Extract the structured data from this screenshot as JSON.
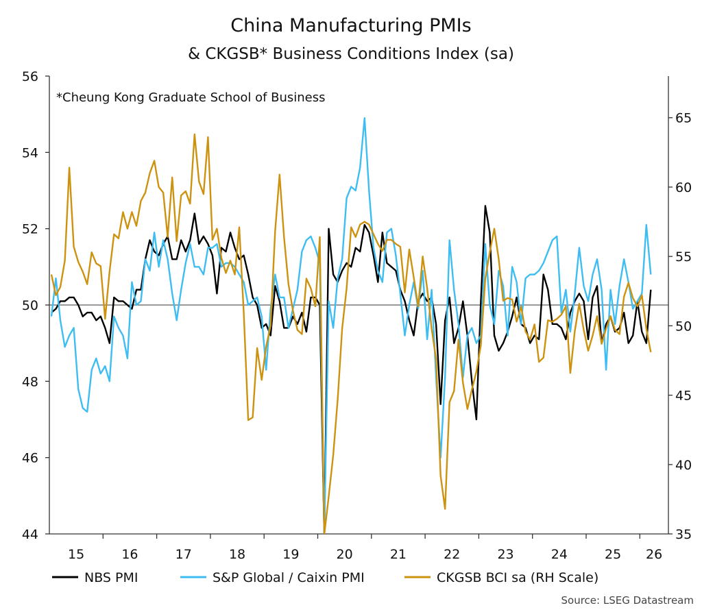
{
  "chart_data": {
    "type": "line",
    "title": "China Manufacturing PMIs",
    "subtitle": "& CKGSB* Business Conditions Index (sa)",
    "annotation": "*Cheung Kong Graduate School of Business",
    "source": "Source: LSEG Datastream",
    "x_start": "2015-01",
    "x_end": "2026-03",
    "x_frequency": "monthly",
    "x_tick_labels": [
      "15",
      "16",
      "17",
      "18",
      "19",
      "20",
      "21",
      "22",
      "23",
      "24",
      "25",
      "26"
    ],
    "y_left": {
      "ylim": [
        44,
        56
      ],
      "ticks": [
        44,
        46,
        48,
        50,
        52,
        54,
        56
      ],
      "reference_line": 50
    },
    "y_right": {
      "ylim": [
        35,
        68
      ],
      "ticks": [
        35,
        40,
        45,
        50,
        55,
        60,
        65
      ]
    },
    "grid": false,
    "legend_placement": "bottom",
    "series": [
      {
        "name": "NBS PMI",
        "axis": "left",
        "color": "#000000",
        "values": [
          49.8,
          49.9,
          50.1,
          50.1,
          50.2,
          50.2,
          50.0,
          49.7,
          49.8,
          49.8,
          49.6,
          49.7,
          49.4,
          49.0,
          50.2,
          50.1,
          50.1,
          50.0,
          49.9,
          50.4,
          50.4,
          51.2,
          51.7,
          51.4,
          51.3,
          51.6,
          51.8,
          51.2,
          51.2,
          51.7,
          51.4,
          51.7,
          52.4,
          51.6,
          51.8,
          51.6,
          51.3,
          50.3,
          51.5,
          51.4,
          51.9,
          51.5,
          51.2,
          51.3,
          50.8,
          50.2,
          50.0,
          49.4,
          49.5,
          49.2,
          50.5,
          50.1,
          49.4,
          49.4,
          49.7,
          49.5,
          49.8,
          49.3,
          50.2,
          50.2,
          50.0,
          35.7,
          52.0,
          50.8,
          50.6,
          50.9,
          51.1,
          51.0,
          51.5,
          51.4,
          52.1,
          51.9,
          51.3,
          50.6,
          51.9,
          51.1,
          51.0,
          50.9,
          50.4,
          50.1,
          49.6,
          49.2,
          50.1,
          50.3,
          50.1,
          50.2,
          49.5,
          47.4,
          49.6,
          50.2,
          49.0,
          49.4,
          50.1,
          49.2,
          48.0,
          47.0,
          50.1,
          52.6,
          51.9,
          49.2,
          48.8,
          49.0,
          49.3,
          49.7,
          50.2,
          49.5,
          49.4,
          49.0,
          49.2,
          49.1,
          50.8,
          50.4,
          49.5,
          49.5,
          49.4,
          49.1,
          49.8,
          50.1,
          50.3,
          50.1,
          49.1,
          50.2,
          50.5,
          49.0,
          49.5,
          49.7,
          49.3,
          49.4,
          49.8,
          49.0,
          49.2,
          50.1,
          49.3,
          49.0,
          50.4
        ]
      },
      {
        "name": "S&P Global / Caixin PMI",
        "axis": "left",
        "color": "#3dbdf2",
        "values": [
          49.7,
          50.7,
          49.6,
          48.9,
          49.2,
          49.4,
          47.8,
          47.3,
          47.2,
          48.3,
          48.6,
          48.2,
          48.4,
          48.0,
          49.7,
          49.4,
          49.2,
          48.6,
          50.6,
          50.0,
          50.1,
          51.2,
          50.9,
          51.9,
          51.0,
          51.7,
          51.2,
          50.3,
          49.6,
          50.4,
          51.1,
          51.6,
          51.0,
          51.0,
          50.8,
          51.5,
          51.5,
          51.6,
          51.0,
          51.1,
          51.1,
          51.0,
          50.8,
          50.6,
          50.0,
          50.1,
          50.2,
          49.7,
          48.3,
          49.9,
          50.8,
          50.2,
          50.2,
          49.4,
          49.9,
          50.4,
          51.4,
          51.7,
          51.8,
          51.5,
          51.1,
          40.3,
          50.1,
          49.4,
          50.7,
          51.2,
          52.8,
          53.1,
          53.0,
          53.6,
          54.9,
          53.0,
          51.5,
          50.9,
          50.6,
          51.9,
          52.0,
          51.3,
          50.3,
          49.2,
          50.0,
          50.6,
          49.9,
          50.9,
          49.1,
          50.4,
          48.1,
          46.0,
          48.1,
          51.7,
          50.4,
          49.5,
          48.1,
          49.2,
          49.4,
          49.0,
          49.2,
          51.6,
          50.0,
          49.5,
          50.9,
          50.5,
          49.2,
          51.0,
          50.6,
          49.5,
          50.7,
          50.8,
          50.8,
          50.9,
          51.1,
          51.4,
          51.7,
          51.8,
          49.8,
          50.4,
          49.3,
          50.3,
          51.5,
          50.5,
          50.1,
          50.8,
          51.2,
          50.4,
          48.3,
          50.4,
          49.5,
          50.5,
          51.2,
          50.6,
          49.9,
          50.1,
          50.3,
          52.1,
          50.8
        ]
      },
      {
        "name": "CKGSB BCI sa (RH Scale)",
        "axis": "right",
        "color": "#cc9210",
        "values": [
          53.7,
          52.2,
          52.8,
          54.7,
          61.4,
          55.7,
          54.6,
          53.9,
          53.0,
          55.3,
          54.5,
          54.3,
          50.5,
          53.9,
          56.6,
          56.3,
          58.2,
          57.0,
          58.2,
          57.2,
          59.0,
          59.6,
          61.0,
          61.9,
          60.0,
          59.6,
          56.4,
          60.7,
          56.1,
          59.4,
          59.7,
          58.8,
          63.8,
          60.4,
          59.5,
          63.6,
          56.2,
          57.0,
          54.9,
          53.8,
          54.7,
          53.7,
          57.1,
          50.9,
          43.2,
          43.4,
          48.4,
          46.1,
          48.5,
          50.0,
          56.8,
          60.9,
          56.4,
          53.0,
          51.1,
          49.7,
          49.4,
          53.4,
          52.7,
          51.4,
          56.4,
          34.0,
          37.7,
          40.7,
          44.7,
          49.8,
          52.7,
          57.1,
          56.4,
          57.3,
          57.5,
          57.3,
          56.6,
          55.9,
          55.4,
          56.2,
          56.2,
          55.9,
          55.7,
          52.4,
          55.5,
          53.5,
          51.4,
          55.0,
          52.7,
          49.8,
          47.6,
          39.2,
          36.8,
          44.5,
          45.3,
          49.0,
          45.9,
          44.0,
          45.4,
          46.7,
          48.6,
          53.4,
          55.3,
          57.0,
          54.8,
          51.8,
          52.0,
          51.9,
          50.3,
          51.4,
          49.6,
          49.0,
          50.1,
          47.4,
          47.7,
          50.4,
          50.3,
          50.5,
          50.8,
          51.4,
          46.6,
          49.6,
          51.6,
          49.7,
          48.2,
          49.3,
          50.7,
          48.7,
          49.8,
          50.7,
          49.7,
          49.4,
          52.1,
          53.1,
          52.0,
          51.4,
          52.2,
          49.8,
          48.1
        ]
      }
    ]
  }
}
